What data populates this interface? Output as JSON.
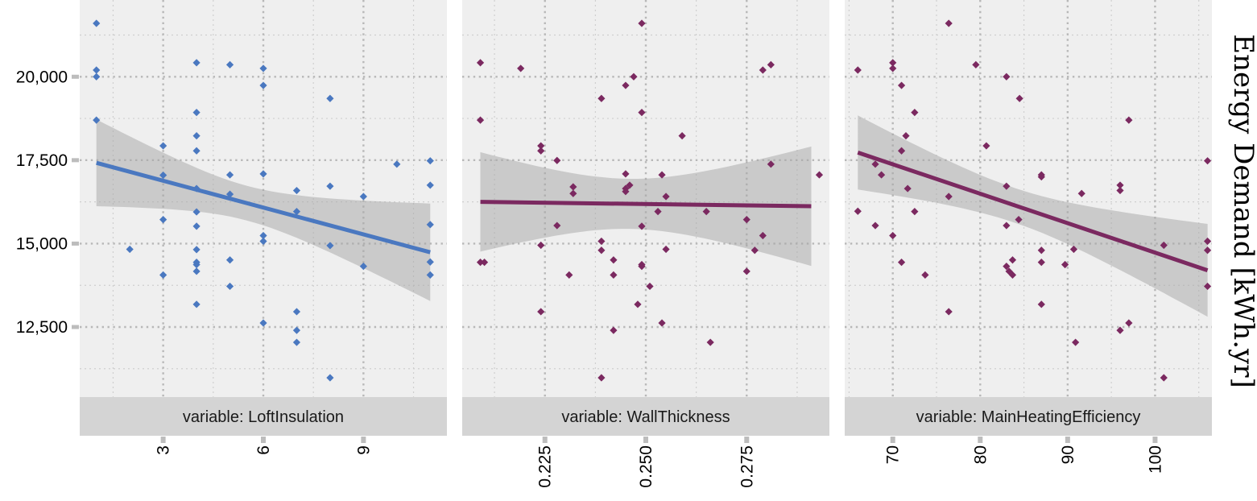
{
  "chart_data": {
    "type": "scatter",
    "ylabel": "Energy Demand [kWh.yr]",
    "ylim": [
      10400,
      22300
    ],
    "y_ticks": [
      12500,
      15000,
      17500,
      20000
    ],
    "y_tick_labels": [
      "12,500",
      "15,000",
      "17,500",
      "20,000"
    ],
    "grid": true,
    "panels": [
      {
        "strip_label": "variable: LoftInsulation",
        "color": "#4a78c0",
        "xlim": [
          0.5,
          11.5
        ],
        "x_ticks": [
          3,
          6,
          9
        ],
        "x_tick_labels": [
          "3",
          "6",
          "9"
        ],
        "fit": {
          "x": [
            1,
            11
          ],
          "y": [
            17420,
            14740
          ]
        },
        "ci_lower": [
          16100,
          13280
        ],
        "ci_upper": [
          18700,
          16200
        ],
        "points": [
          {
            "x": 1,
            "y": 21600
          },
          {
            "x": 1,
            "y": 20200
          },
          {
            "x": 1,
            "y": 20000
          },
          {
            "x": 1,
            "y": 18700
          },
          {
            "x": 2,
            "y": 14830
          },
          {
            "x": 3,
            "y": 17930
          },
          {
            "x": 3,
            "y": 17050
          },
          {
            "x": 3,
            "y": 15720
          },
          {
            "x": 3,
            "y": 14060
          },
          {
            "x": 4,
            "y": 20420
          },
          {
            "x": 4,
            "y": 18930
          },
          {
            "x": 4,
            "y": 18230
          },
          {
            "x": 4,
            "y": 17780
          },
          {
            "x": 4,
            "y": 16650
          },
          {
            "x": 4,
            "y": 15950
          },
          {
            "x": 4,
            "y": 15520
          },
          {
            "x": 4,
            "y": 14820
          },
          {
            "x": 4,
            "y": 14440
          },
          {
            "x": 4,
            "y": 14370
          },
          {
            "x": 4,
            "y": 14170
          },
          {
            "x": 4,
            "y": 13180
          },
          {
            "x": 5,
            "y": 20360
          },
          {
            "x": 5,
            "y": 17060
          },
          {
            "x": 5,
            "y": 16480
          },
          {
            "x": 5,
            "y": 14510
          },
          {
            "x": 5,
            "y": 13720
          },
          {
            "x": 6,
            "y": 20250
          },
          {
            "x": 6,
            "y": 19740
          },
          {
            "x": 6,
            "y": 17090
          },
          {
            "x": 6,
            "y": 15240
          },
          {
            "x": 6,
            "y": 15070
          },
          {
            "x": 6,
            "y": 12620
          },
          {
            "x": 7,
            "y": 16590
          },
          {
            "x": 7,
            "y": 15960
          },
          {
            "x": 7,
            "y": 12960
          },
          {
            "x": 7,
            "y": 12400
          },
          {
            "x": 7,
            "y": 12040
          },
          {
            "x": 8,
            "y": 19350
          },
          {
            "x": 8,
            "y": 16720
          },
          {
            "x": 8,
            "y": 14940
          },
          {
            "x": 8,
            "y": 10980
          },
          {
            "x": 9,
            "y": 16410
          },
          {
            "x": 9,
            "y": 14320
          },
          {
            "x": 10,
            "y": 17380
          },
          {
            "x": 11,
            "y": 17480
          },
          {
            "x": 11,
            "y": 16750
          },
          {
            "x": 11,
            "y": 15570
          },
          {
            "x": 11,
            "y": 14450
          },
          {
            "x": 11,
            "y": 14060
          }
        ]
      },
      {
        "strip_label": "variable: WallThickness",
        "color": "#7b2960",
        "xlim": [
          0.2045,
          0.2955
        ],
        "x_ticks": [
          0.225,
          0.25,
          0.275
        ],
        "x_tick_labels": [
          "0.225",
          "0.250",
          "0.275"
        ],
        "fit": {
          "x": [
            0.209,
            0.291
          ],
          "y": [
            16250,
            16120
          ]
        },
        "ci_lower": [
          14760,
          14330
        ],
        "ci_upper": [
          17740,
          17910
        ],
        "points": [
          {
            "x": 0.209,
            "y": 20420
          },
          {
            "x": 0.209,
            "y": 18700
          },
          {
            "x": 0.209,
            "y": 14440
          },
          {
            "x": 0.21,
            "y": 14440
          },
          {
            "x": 0.219,
            "y": 20250
          },
          {
            "x": 0.224,
            "y": 17930
          },
          {
            "x": 0.224,
            "y": 17780
          },
          {
            "x": 0.224,
            "y": 14950
          },
          {
            "x": 0.224,
            "y": 12960
          },
          {
            "x": 0.228,
            "y": 17490
          },
          {
            "x": 0.228,
            "y": 15540
          },
          {
            "x": 0.231,
            "y": 14060
          },
          {
            "x": 0.232,
            "y": 16700
          },
          {
            "x": 0.232,
            "y": 16500
          },
          {
            "x": 0.239,
            "y": 19350
          },
          {
            "x": 0.239,
            "y": 15070
          },
          {
            "x": 0.239,
            "y": 14800
          },
          {
            "x": 0.239,
            "y": 10980
          },
          {
            "x": 0.242,
            "y": 14510
          },
          {
            "x": 0.242,
            "y": 14060
          },
          {
            "x": 0.242,
            "y": 12400
          },
          {
            "x": 0.245,
            "y": 19740
          },
          {
            "x": 0.245,
            "y": 17090
          },
          {
            "x": 0.245,
            "y": 16650
          },
          {
            "x": 0.245,
            "y": 16560
          },
          {
            "x": 0.246,
            "y": 16750
          },
          {
            "x": 0.247,
            "y": 20000
          },
          {
            "x": 0.249,
            "y": 21600
          },
          {
            "x": 0.249,
            "y": 18930
          },
          {
            "x": 0.249,
            "y": 15520
          },
          {
            "x": 0.249,
            "y": 14370
          },
          {
            "x": 0.249,
            "y": 14320
          },
          {
            "x": 0.248,
            "y": 13180
          },
          {
            "x": 0.251,
            "y": 13720
          },
          {
            "x": 0.253,
            "y": 15960
          },
          {
            "x": 0.254,
            "y": 17060
          },
          {
            "x": 0.254,
            "y": 12620
          },
          {
            "x": 0.255,
            "y": 16410
          },
          {
            "x": 0.255,
            "y": 14830
          },
          {
            "x": 0.259,
            "y": 18230
          },
          {
            "x": 0.265,
            "y": 15960
          },
          {
            "x": 0.266,
            "y": 12040
          },
          {
            "x": 0.275,
            "y": 15720
          },
          {
            "x": 0.275,
            "y": 14170
          },
          {
            "x": 0.277,
            "y": 14800
          },
          {
            "x": 0.279,
            "y": 20200
          },
          {
            "x": 0.279,
            "y": 15240
          },
          {
            "x": 0.281,
            "y": 20360
          },
          {
            "x": 0.281,
            "y": 17380
          },
          {
            "x": 0.293,
            "y": 17060
          }
        ]
      },
      {
        "strip_label": "variable: MainHeatingEfficiency",
        "color": "#7b2960",
        "xlim": [
          64.5,
          106.5
        ],
        "x_ticks": [
          70,
          80,
          90,
          100
        ],
        "x_tick_labels": [
          "70",
          "80",
          "90",
          "100"
        ],
        "fit": {
          "x": [
            66,
            106
          ],
          "y": [
            17730,
            14200
          ]
        },
        "ci_lower": [
          16620,
          12820
        ],
        "ci_upper": [
          18840,
          15600
        ],
        "points": [
          {
            "x": 66,
            "y": 20200
          },
          {
            "x": 66,
            "y": 15970
          },
          {
            "x": 68,
            "y": 17380
          },
          {
            "x": 68,
            "y": 15540
          },
          {
            "x": 68.7,
            "y": 17060
          },
          {
            "x": 70,
            "y": 20420
          },
          {
            "x": 70,
            "y": 20250
          },
          {
            "x": 70,
            "y": 15240
          },
          {
            "x": 71,
            "y": 19740
          },
          {
            "x": 71,
            "y": 17780
          },
          {
            "x": 71,
            "y": 14440
          },
          {
            "x": 71.5,
            "y": 18230
          },
          {
            "x": 71.7,
            "y": 16650
          },
          {
            "x": 72.5,
            "y": 18930
          },
          {
            "x": 72.5,
            "y": 15960
          },
          {
            "x": 73.7,
            "y": 14060
          },
          {
            "x": 76.4,
            "y": 21600
          },
          {
            "x": 76.4,
            "y": 16410
          },
          {
            "x": 76.4,
            "y": 12960
          },
          {
            "x": 79.5,
            "y": 20360
          },
          {
            "x": 80.7,
            "y": 17930
          },
          {
            "x": 83,
            "y": 20000
          },
          {
            "x": 83,
            "y": 16720
          },
          {
            "x": 83,
            "y": 15540
          },
          {
            "x": 83,
            "y": 14320
          },
          {
            "x": 83.3,
            "y": 14170
          },
          {
            "x": 83.7,
            "y": 14060
          },
          {
            "x": 83.7,
            "y": 14510
          },
          {
            "x": 84.5,
            "y": 19350
          },
          {
            "x": 84.4,
            "y": 15720
          },
          {
            "x": 87,
            "y": 17060
          },
          {
            "x": 87,
            "y": 17000
          },
          {
            "x": 87,
            "y": 14800
          },
          {
            "x": 87,
            "y": 14440
          },
          {
            "x": 87,
            "y": 13180
          },
          {
            "x": 89.7,
            "y": 14370
          },
          {
            "x": 90.7,
            "y": 14830
          },
          {
            "x": 90.9,
            "y": 12040
          },
          {
            "x": 91.6,
            "y": 16500
          },
          {
            "x": 96,
            "y": 16750
          },
          {
            "x": 96,
            "y": 16590
          },
          {
            "x": 96,
            "y": 12400
          },
          {
            "x": 97,
            "y": 18700
          },
          {
            "x": 97,
            "y": 12620
          },
          {
            "x": 101,
            "y": 14950
          },
          {
            "x": 101,
            "y": 10980
          },
          {
            "x": 106,
            "y": 17480
          },
          {
            "x": 106,
            "y": 15070
          },
          {
            "x": 106,
            "y": 14800
          },
          {
            "x": 106,
            "y": 13720
          }
        ]
      }
    ]
  }
}
